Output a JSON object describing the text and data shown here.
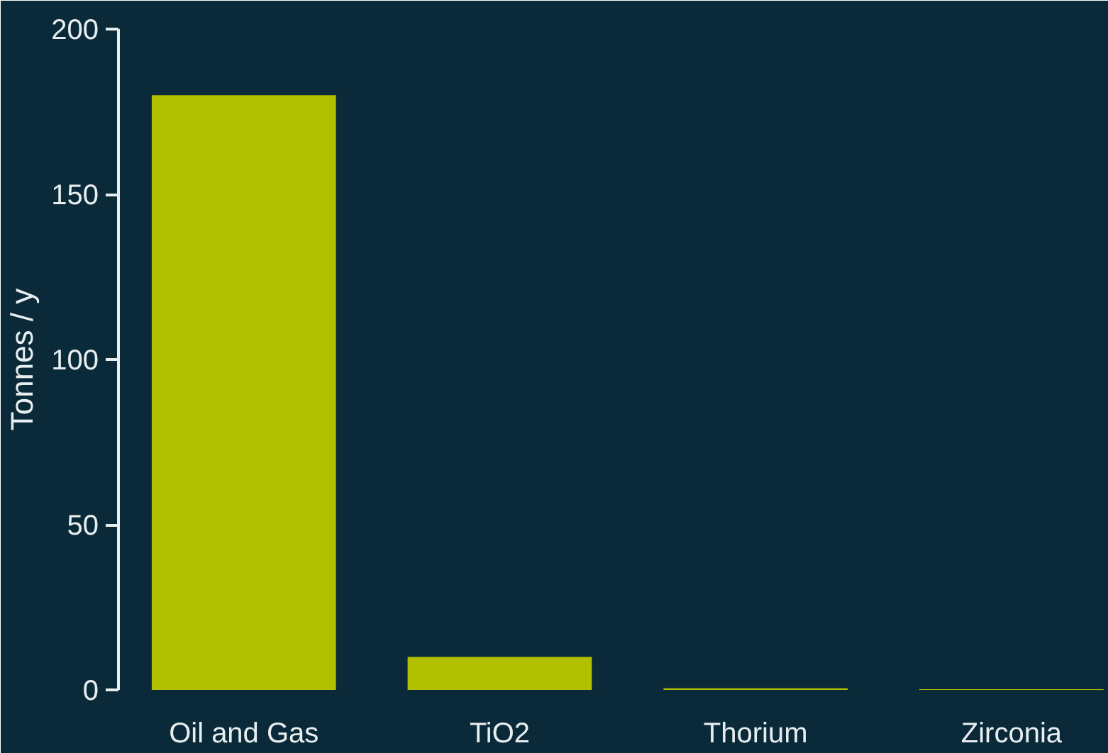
{
  "chart_data": {
    "type": "bar",
    "ylabel": "Tonnes / y",
    "categories": [
      "Oil and Gas",
      "TiO2",
      "Thorium",
      "Zirconia"
    ],
    "values": [
      180,
      10,
      0.5,
      0.2
    ],
    "color": "#b0c000",
    "ylim": [
      0,
      200
    ],
    "yticks": [
      0,
      50,
      100,
      150,
      200
    ],
    "grid": false
  }
}
